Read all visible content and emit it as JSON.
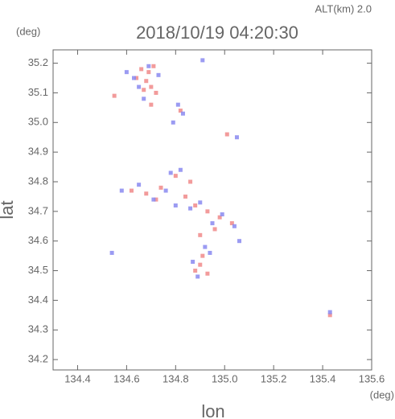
{
  "chart_data": {
    "type": "scatter",
    "title": "2018/10/19 04:20:30",
    "annotation": "ALT(km) 2.0",
    "y_unit": "(deg)",
    "x_unit": "(deg)",
    "xlabel": "lon",
    "ylabel": "lat",
    "xlim": [
      134.3,
      135.6
    ],
    "ylim": [
      34.165,
      35.245
    ],
    "xticks": [
      134.4,
      134.6,
      134.8,
      {
        "value": 135,
        "label": "135.0"
      },
      135.2,
      135.4,
      135.6
    ],
    "yticks": [
      34.2,
      34.3,
      34.4,
      34.5,
      34.6,
      34.7,
      34.8,
      34.9,
      {
        "value": 35,
        "label": "35.0"
      },
      35.1,
      35.2
    ],
    "series": [
      {
        "color": "#f08a8a",
        "x": [
          134.66,
          134.68,
          134.7,
          134.69,
          134.72,
          134.67,
          134.71,
          134.64,
          134.55,
          134.7,
          134.82,
          135.01,
          134.62,
          134.68,
          134.74,
          134.8,
          134.84,
          134.88,
          134.93,
          134.98,
          135.03,
          134.9,
          134.88,
          134.91,
          134.93,
          135.43,
          134.86,
          134.9,
          134.72,
          134.96
        ],
        "values": [
          35.18,
          35.14,
          35.12,
          35.17,
          35.1,
          35.11,
          35.19,
          35.15,
          35.09,
          35.06,
          35.04,
          34.96,
          34.77,
          34.76,
          34.78,
          34.82,
          34.75,
          34.72,
          34.7,
          34.68,
          34.66,
          34.52,
          34.5,
          34.55,
          34.49,
          34.35,
          34.8,
          34.62,
          34.74,
          34.64
        ]
      },
      {
        "color": "#8a8af0",
        "x": [
          134.63,
          134.69,
          134.65,
          134.73,
          134.6,
          134.67,
          134.81,
          134.83,
          134.79,
          134.91,
          135.05,
          134.58,
          134.65,
          134.76,
          134.78,
          134.82,
          134.86,
          134.9,
          134.95,
          134.99,
          135.04,
          135.06,
          134.87,
          134.89,
          134.94,
          135.43,
          134.54,
          134.92,
          134.8,
          134.71
        ],
        "values": [
          35.15,
          35.19,
          35.12,
          35.16,
          35.17,
          35.08,
          35.06,
          35.03,
          35.0,
          35.21,
          34.95,
          34.77,
          34.79,
          34.77,
          34.83,
          34.84,
          34.71,
          34.73,
          34.66,
          34.69,
          34.65,
          34.6,
          34.53,
          34.48,
          34.56,
          34.36,
          34.56,
          34.58,
          34.72,
          34.74
        ]
      }
    ]
  }
}
